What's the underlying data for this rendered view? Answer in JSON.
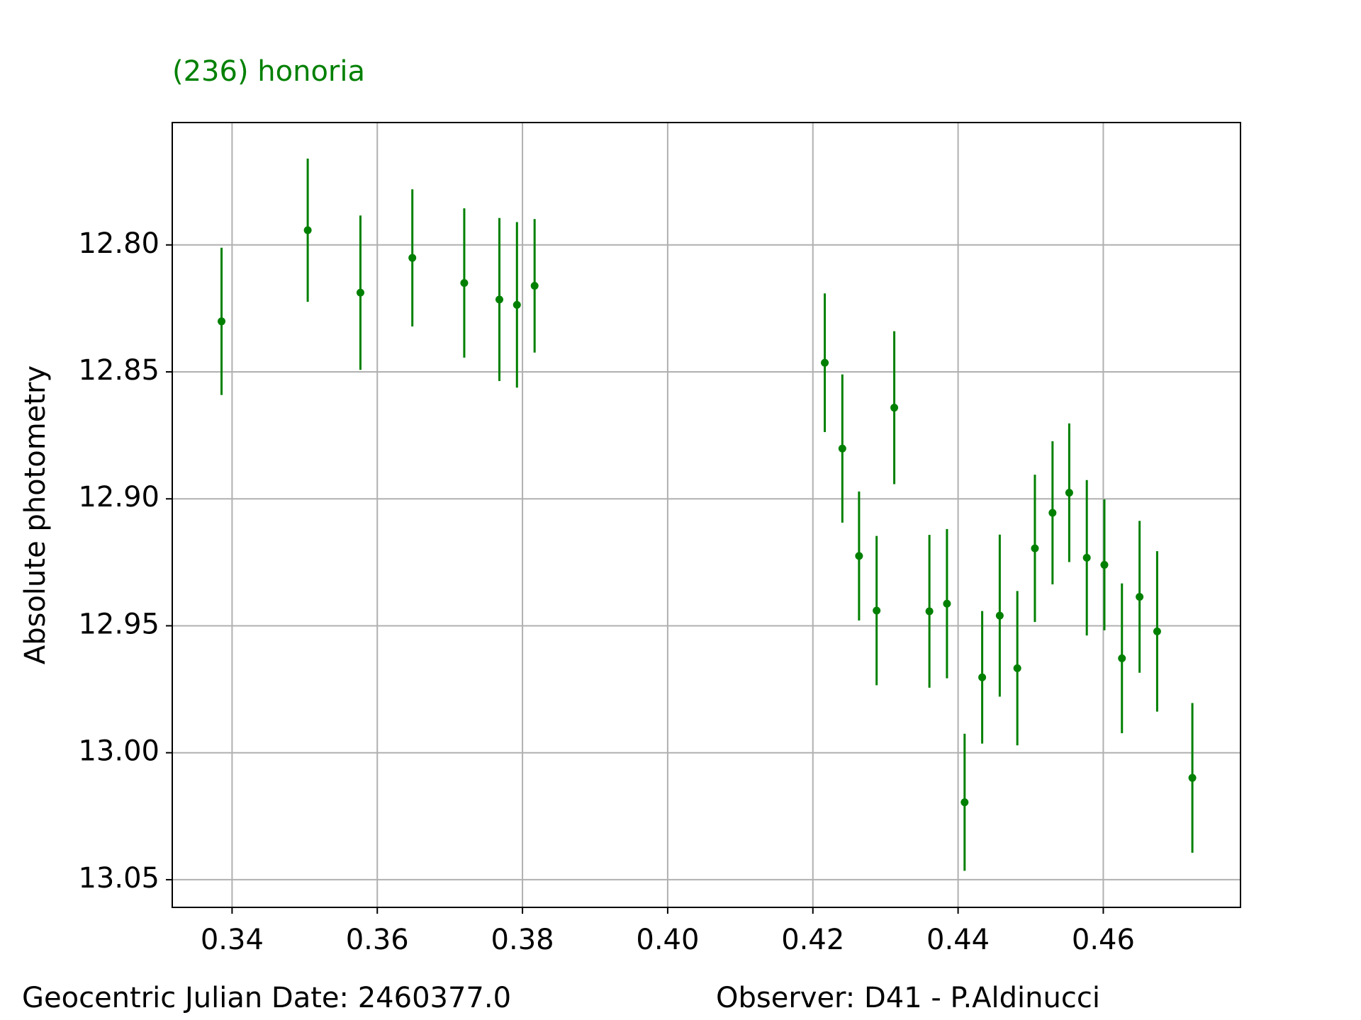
{
  "chart_data": {
    "type": "errorbar",
    "title": "(236) honoria",
    "title_color": "#008000",
    "y_label": "Absolute photometry",
    "footer_left": "Geocentric Julian Date: 2460377.0",
    "footer_right": "Observer: D41 - P.Aldinucci",
    "color": "#008000",
    "x": [
      0.33855,
      0.35042,
      0.35768,
      0.36483,
      0.37198,
      0.37682,
      0.37924,
      0.38167,
      0.42164,
      0.42406,
      0.42636,
      0.42878,
      0.43121,
      0.43605,
      0.43847,
      0.4409,
      0.44332,
      0.44574,
      0.44816,
      0.45058,
      0.45301,
      0.45531,
      0.45773,
      0.46015,
      0.46257,
      0.465,
      0.46742,
      0.47227
    ],
    "values": [
      12.8301,
      12.7942,
      12.8188,
      12.8051,
      12.815,
      12.8215,
      12.8236,
      12.8161,
      12.8464,
      12.8802,
      12.9225,
      12.944,
      12.8641,
      12.9443,
      12.9413,
      13.0195,
      12.9703,
      12.946,
      12.9667,
      12.9195,
      12.9055,
      12.8976,
      12.9232,
      12.926,
      12.9628,
      12.9386,
      12.9522,
      13.0099
    ],
    "errors": [
      0.029,
      0.0282,
      0.0304,
      0.027,
      0.0294,
      0.0321,
      0.0326,
      0.0263,
      0.0273,
      0.0292,
      0.0254,
      0.0294,
      0.0301,
      0.0301,
      0.0294,
      0.027,
      0.0261,
      0.0319,
      0.0304,
      0.029,
      0.0282,
      0.0273,
      0.0306,
      0.0258,
      0.0295,
      0.0299,
      0.0316,
      0.0295
    ],
    "xlim": [
      0.33176,
      0.4789
    ],
    "ylim": [
      12.7518,
      13.0609
    ],
    "y_inverted": true,
    "xticks": [
      0.34,
      0.36,
      0.38,
      {
        "value": 0.4,
        "label": "0.40"
      },
      0.42,
      0.44,
      0.46
    ],
    "yticks": [
      {
        "value": 12.8,
        "label": "12.80"
      },
      12.85,
      {
        "value": 12.9,
        "label": "12.90"
      },
      12.95,
      {
        "value": 13.0,
        "label": "13.00"
      },
      13.05
    ],
    "grid": true
  }
}
